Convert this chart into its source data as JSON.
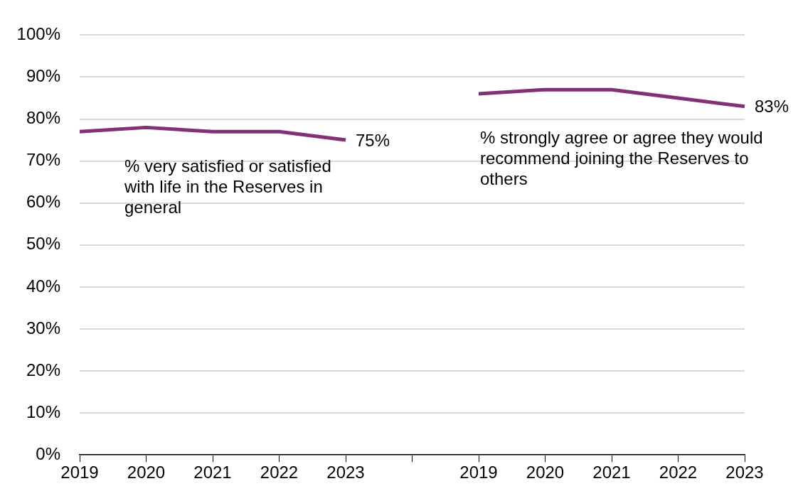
{
  "chart_data": {
    "type": "line",
    "categories": [
      "2019",
      "2020",
      "2021",
      "2022",
      "2023",
      null,
      "2019",
      "2020",
      "2021",
      "2022",
      "2023"
    ],
    "series": [
      {
        "name": "% very satisfied or satisfied with life in the Reserves in general",
        "color": "#833177",
        "values": [
          77,
          78,
          77,
          77,
          75,
          null,
          null,
          null,
          null,
          null,
          null
        ],
        "value_labels": [
          null,
          null,
          null,
          null,
          "75%",
          null,
          null,
          null,
          null,
          null,
          null
        ]
      },
      {
        "name": "% strongly agree or agree they would recommend joining the Reserves to others",
        "color": "#833177",
        "values": [
          null,
          null,
          null,
          null,
          null,
          null,
          86,
          87,
          87,
          85,
          83
        ],
        "value_labels": [
          null,
          null,
          null,
          null,
          null,
          null,
          null,
          null,
          null,
          null,
          "83%"
        ]
      }
    ],
    "ylim": [
      0,
      100
    ],
    "yticks": [
      {
        "value": 0,
        "label": "0%"
      },
      {
        "value": 10,
        "label": "10%"
      },
      {
        "value": 20,
        "label": "20%"
      },
      {
        "value": 30,
        "label": "30%"
      },
      {
        "value": 40,
        "label": "40%"
      },
      {
        "value": 50,
        "label": "50%"
      },
      {
        "value": 60,
        "label": "60%"
      },
      {
        "value": 70,
        "label": "70%"
      },
      {
        "value": 80,
        "label": "80%"
      },
      {
        "value": 90,
        "label": "90%"
      },
      {
        "value": 100,
        "label": "100%"
      }
    ],
    "grid": "y",
    "legend": false
  }
}
